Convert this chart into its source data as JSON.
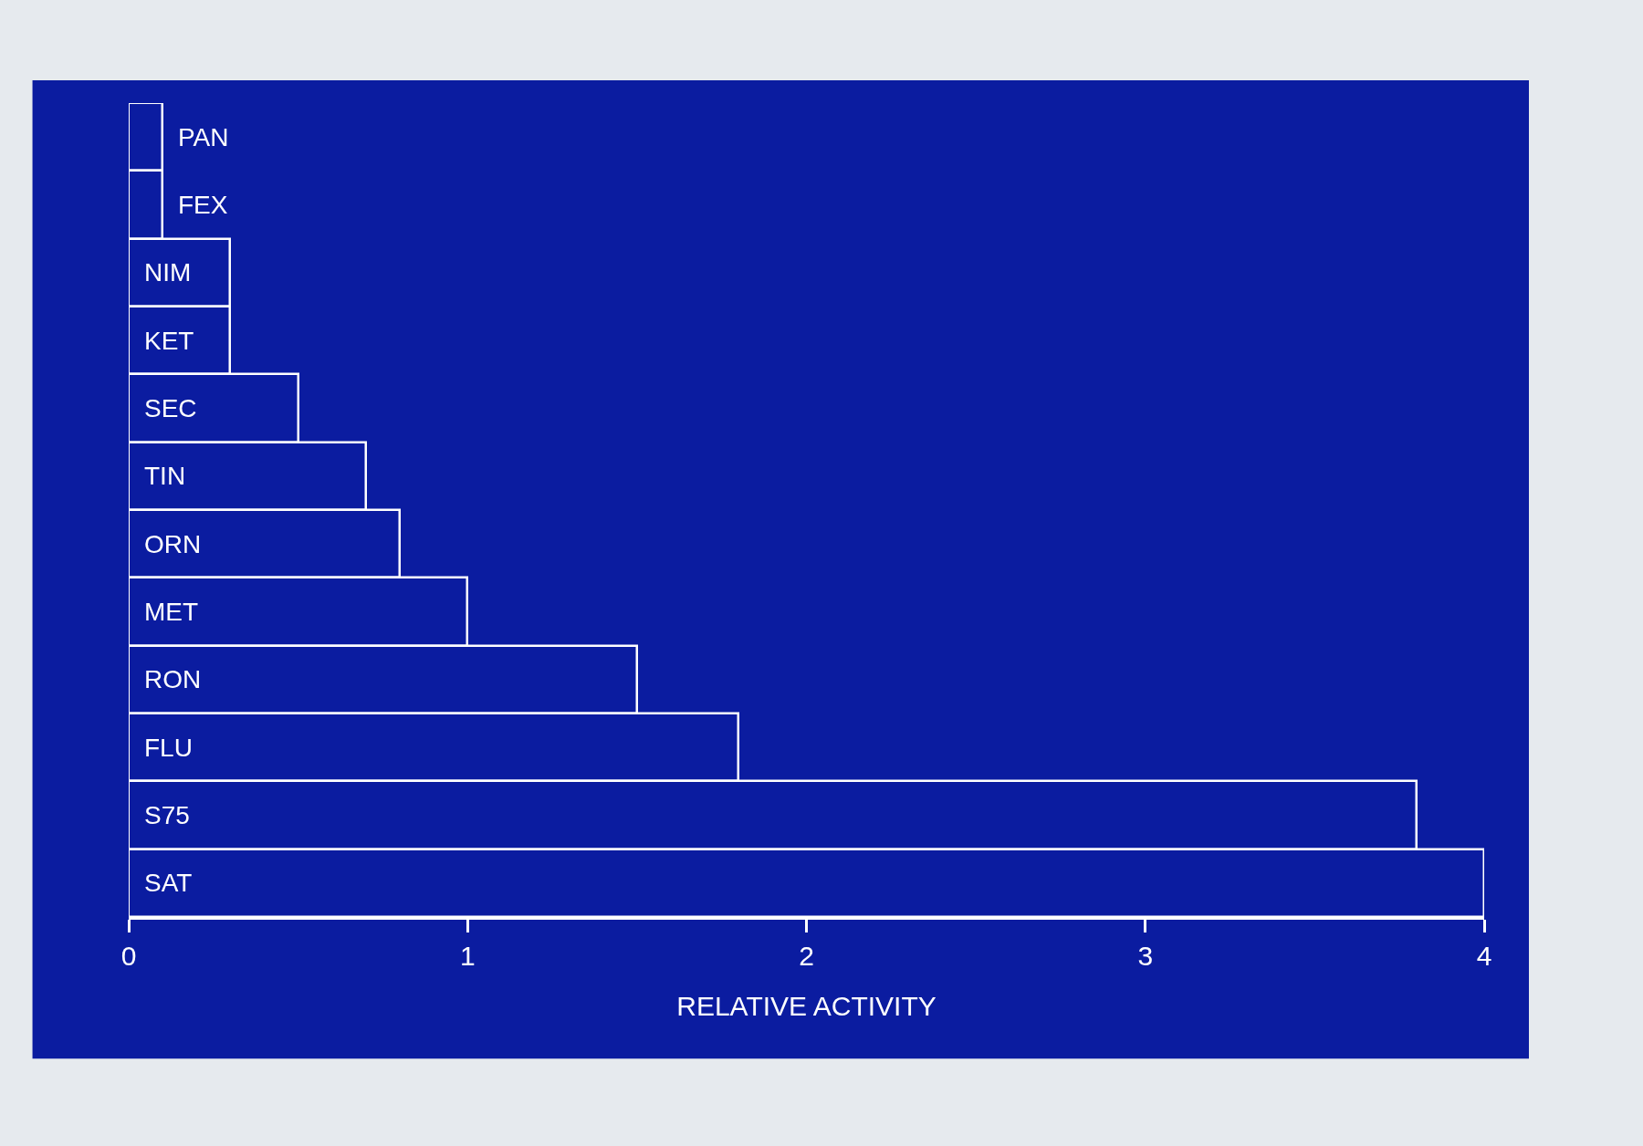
{
  "chart_data": {
    "type": "bar",
    "orientation": "horizontal",
    "xlabel": "RELATIVE ACTIVITY",
    "categories": [
      "PAN",
      "FEX",
      "NIM",
      "KET",
      "SEC",
      "TIN",
      "ORN",
      "MET",
      "RON",
      "FLU",
      "S75",
      "SAT"
    ],
    "values": [
      0.1,
      0.1,
      0.3,
      0.3,
      0.5,
      0.7,
      0.8,
      1.0,
      1.5,
      1.8,
      3.8,
      4.0
    ],
    "color": "#0b1ca0",
    "xlim": [
      0,
      4
    ],
    "xticks": [
      0,
      1,
      2,
      3,
      4
    ],
    "grid": false
  }
}
